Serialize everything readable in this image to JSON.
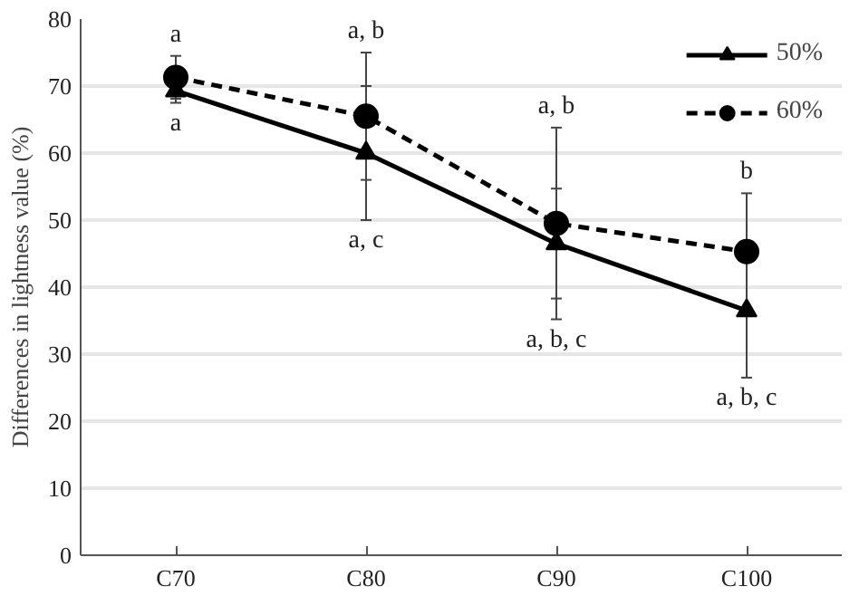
{
  "chart_data": {
    "type": "line",
    "ylabel": "Differences in lightness value (%)",
    "categories": [
      "C70",
      "C80",
      "C90",
      "C100"
    ],
    "series": [
      {
        "name": "50%",
        "color": "#000000",
        "values": [
          69.3,
          60,
          46.5,
          36.5
        ],
        "errors": [
          1.8,
          10,
          8.2,
          10
        ],
        "marker": "triangle",
        "line_style": "solid"
      },
      {
        "name": "60%",
        "color": "#000000",
        "values": [
          71.3,
          65.5,
          49.5,
          45.3
        ],
        "errors": [
          3.2,
          9.5,
          14.3,
          8.7
        ],
        "marker": "circle",
        "line_style": "dashed"
      }
    ],
    "ylim": [
      0,
      80
    ],
    "yticks": [
      0,
      10,
      20,
      30,
      40,
      50,
      60,
      70,
      80
    ],
    "grid": "y",
    "legend": "top right",
    "annotations": [
      "a",
      "a",
      "a, b",
      "a, c",
      "a, b",
      "a, b, c",
      "b",
      "a, b, c"
    ]
  }
}
